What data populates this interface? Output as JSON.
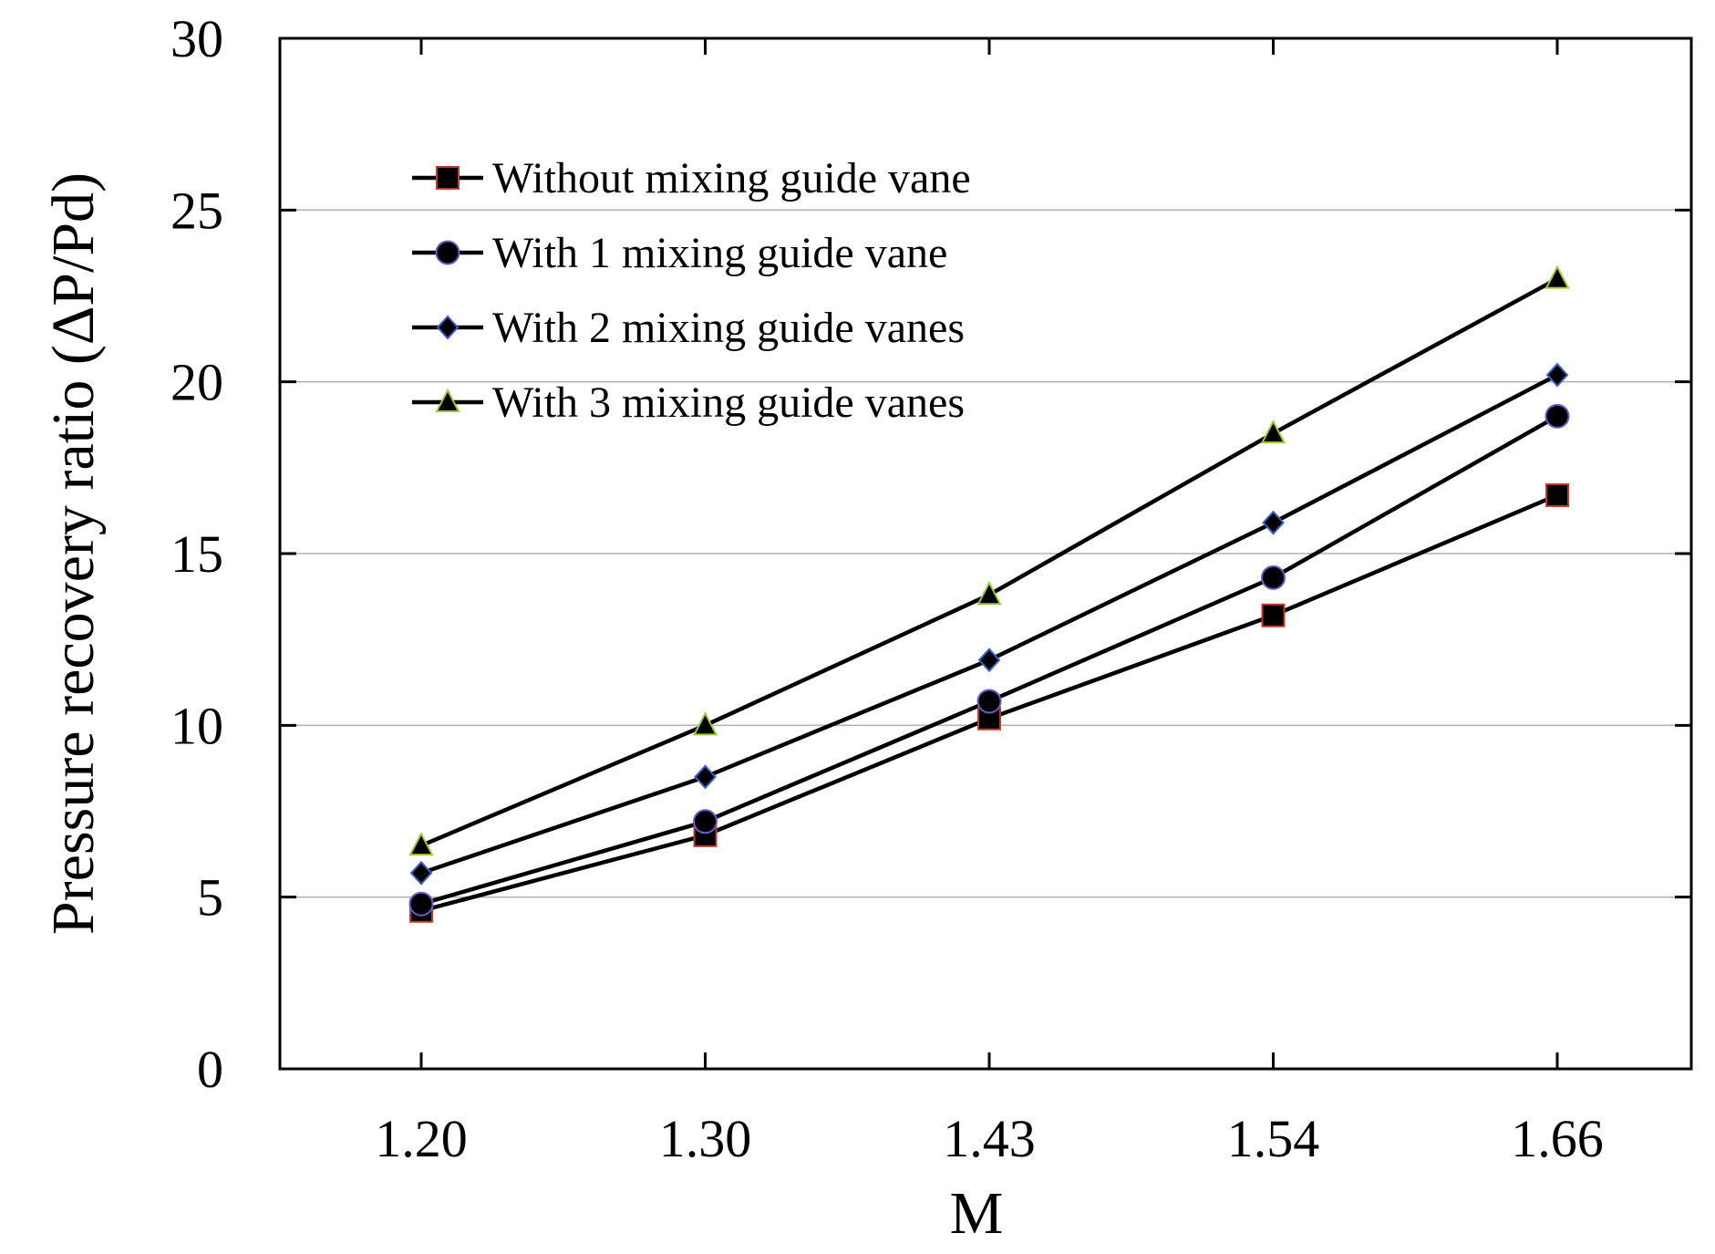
{
  "chart_data": {
    "type": "line",
    "title": "",
    "xlabel": "M",
    "ylabel": "Pressure recovery ratio (ΔP/Pd)",
    "categories": [
      "1.20",
      "1.30",
      "1.43",
      "1.54",
      "1.66"
    ],
    "ylim": [
      0,
      30
    ],
    "yticks": [
      "0",
      "5",
      "10",
      "15",
      "20",
      "25",
      "30"
    ],
    "grid": "horizontal",
    "legend_position": "top-left",
    "series": [
      {
        "name": "Without mixing guide vane",
        "marker": "square",
        "fill": "#000000",
        "edge": "#c0392b",
        "values": [
          4.6,
          6.8,
          10.2,
          13.2,
          16.7
        ]
      },
      {
        "name": "With 1 mixing guide vane",
        "marker": "circle",
        "fill": "#000000",
        "edge": "#6a5acd",
        "values": [
          4.8,
          7.2,
          10.7,
          14.3,
          19.0
        ]
      },
      {
        "name": "With 2 mixing guide vanes",
        "marker": "diamond",
        "fill": "#000000",
        "edge": "#3a5fcd",
        "values": [
          5.7,
          8.5,
          11.9,
          15.9,
          20.2
        ]
      },
      {
        "name": "With 3 mixing guide vanes",
        "marker": "triangle",
        "fill": "#000000",
        "edge": "#9acd32",
        "values": [
          6.5,
          10.0,
          13.8,
          18.5,
          23.0
        ]
      }
    ]
  }
}
